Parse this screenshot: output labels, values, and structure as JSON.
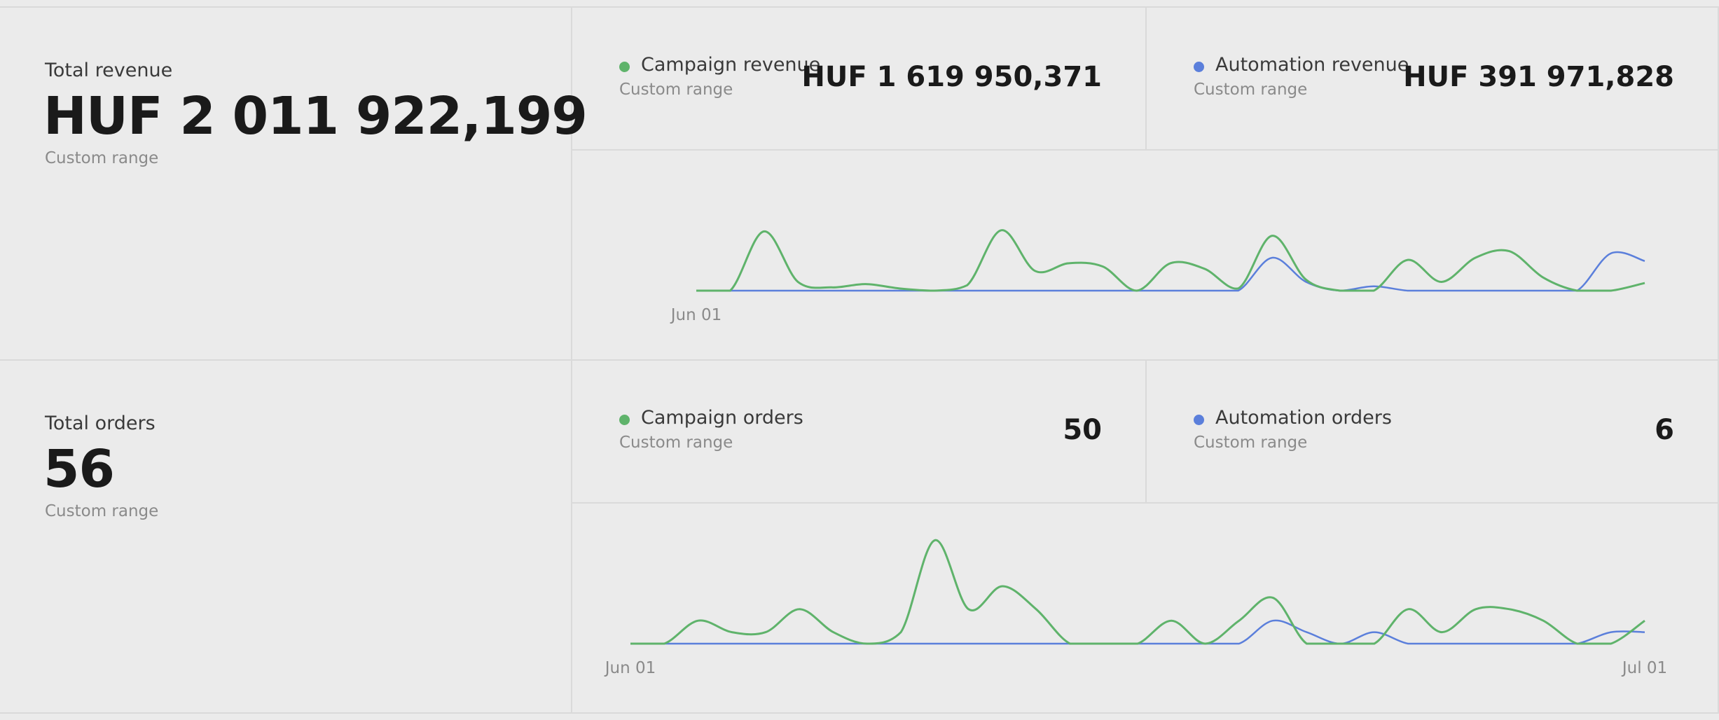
{
  "revenue": {
    "total": {
      "label": "Total revenue",
      "value": "HUF 2 011 922,199",
      "period": "Custom range"
    },
    "metrics": [
      {
        "label": "Campaign revenue",
        "period": "Custom range",
        "value": "HUF 1 619 950,371"
      },
      {
        "label": "Automation revenue",
        "period": "Custom range",
        "value": "HUF 391 971,828"
      }
    ],
    "chart_data": {
      "type": "line",
      "categories": [
        "Jun 01",
        null,
        null,
        null,
        null,
        null,
        null,
        null,
        null,
        null,
        null,
        null,
        null,
        null,
        null,
        null,
        null,
        null,
        null,
        null,
        null,
        null,
        null,
        null,
        null,
        null,
        null,
        null,
        null
      ],
      "series": [
        {
          "color": "#5fb36b",
          "values": [
            0,
            0,
            54,
            8,
            3,
            6,
            2,
            0,
            5,
            55,
            18,
            25,
            22,
            0,
            25,
            20,
            2,
            50,
            10,
            0,
            0,
            28,
            8,
            30,
            36,
            12,
            0,
            0,
            7
          ]
        },
        {
          "color": "#5b7fdb",
          "values": [
            0,
            0,
            0,
            0,
            0,
            0,
            0,
            0,
            0,
            0,
            0,
            0,
            0,
            0,
            0,
            0,
            0,
            30,
            8,
            0,
            4,
            0,
            0,
            0,
            0,
            0,
            0,
            34,
            27
          ]
        }
      ],
      "ylim": [
        0,
        60
      ]
    }
  },
  "orders": {
    "total": {
      "label": "Total orders",
      "value": "56",
      "period": "Custom range"
    },
    "metrics": [
      {
        "label": "Campaign orders",
        "period": "Custom range",
        "value": "50"
      },
      {
        "label": "Automation orders",
        "period": "Custom range",
        "value": "6"
      }
    ],
    "chart_data": {
      "type": "line",
      "categories": [
        "Jun 01",
        null,
        null,
        null,
        null,
        null,
        null,
        null,
        null,
        null,
        null,
        null,
        null,
        null,
        null,
        null,
        null,
        null,
        null,
        null,
        null,
        null,
        null,
        null,
        null,
        null,
        null,
        null,
        null,
        null,
        "Jul 01"
      ],
      "series": [
        {
          "color": "#5fb36b",
          "values": [
            0,
            0,
            2,
            1,
            1,
            3,
            1,
            0,
            1,
            9,
            3,
            5,
            3,
            0,
            0,
            0,
            2,
            0,
            2,
            4,
            0,
            0,
            0,
            3,
            1,
            3,
            3,
            2,
            0,
            0,
            2
          ]
        },
        {
          "color": "#5b7fdb",
          "values": [
            0,
            0,
            0,
            0,
            0,
            0,
            0,
            0,
            0,
            0,
            0,
            0,
            0,
            0,
            0,
            0,
            0,
            0,
            0,
            2,
            1,
            0,
            1,
            0,
            0,
            0,
            0,
            0,
            0,
            1,
            1
          ]
        }
      ],
      "ylim": [
        0,
        10
      ]
    }
  }
}
